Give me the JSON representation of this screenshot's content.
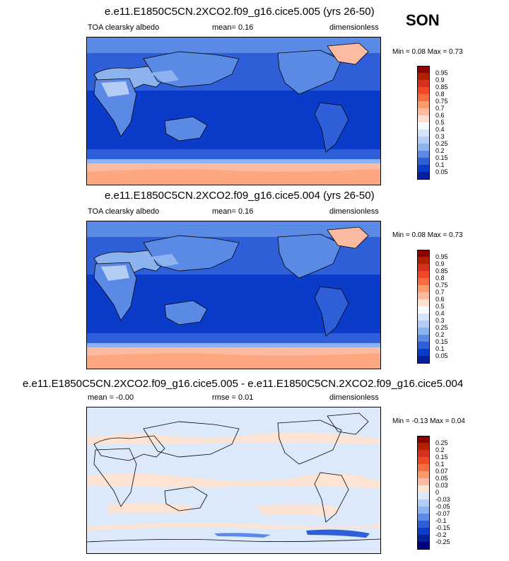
{
  "season": "SON",
  "panels": [
    {
      "title": "e.e11.E1850C5CN.2XCO2.f09_g16.cice5.005 (yrs 26-50)",
      "variable": "TOA clearsky albedo",
      "mean_text": "mean=   0.16",
      "units": "dimensionless",
      "minmax_text": "Min =  0.08 Max =  0.73",
      "colorbar": {
        "labels": [
          "0.95",
          "0.9",
          "0.85",
          "0.8",
          "0.75",
          "0.7",
          "0.6",
          "0.5",
          "0.4",
          "0.3",
          "0.25",
          "0.2",
          "0.15",
          "0.1",
          "0.05"
        ],
        "colors": [
          "#8b0000",
          "#b22000",
          "#d7301f",
          "#ef4a25",
          "#f46d43",
          "#fb9a6a",
          "#fcbba1",
          "#fde0d0",
          "#f7fbff",
          "#d6e4fb",
          "#b3cdf5",
          "#8db3ef",
          "#5a8ae6",
          "#2f5fd8",
          "#0b3bc9",
          "#06209c"
        ]
      }
    },
    {
      "title": "e.e11.E1850C5CN.2XCO2.f09_g16.cice5.004 (yrs 26-50)",
      "variable": "TOA clearsky albedo",
      "mean_text": "mean=   0.16",
      "units": "dimensionless",
      "minmax_text": "Min =  0.08 Max =  0.73",
      "colorbar": {
        "labels": [
          "0.95",
          "0.9",
          "0.85",
          "0.8",
          "0.75",
          "0.7",
          "0.6",
          "0.5",
          "0.4",
          "0.3",
          "0.25",
          "0.2",
          "0.15",
          "0.1",
          "0.05"
        ],
        "colors": [
          "#8b0000",
          "#b22000",
          "#d7301f",
          "#ef4a25",
          "#f46d43",
          "#fb9a6a",
          "#fcbba1",
          "#fde0d0",
          "#f7fbff",
          "#d6e4fb",
          "#b3cdf5",
          "#8db3ef",
          "#5a8ae6",
          "#2f5fd8",
          "#0b3bc9",
          "#06209c"
        ]
      }
    },
    {
      "title": "e.e11.E1850C5CN.2XCO2.f09_g16.cice5.005 - e.e11.E1850C5CN.2XCO2.f09_g16.cice5.004",
      "mean_text": "mean = -0.00",
      "rmse_text": "rmse =  0.01",
      "units": "dimensionless",
      "minmax_text": "Min = -0.13 Max =  0.04",
      "colorbar": {
        "labels": [
          "0.25",
          "0.2",
          "0.15",
          "0.1",
          "0.07",
          "0.05",
          "0.03",
          "0",
          "-0.03",
          "-0.05",
          "-0.07",
          "-0.1",
          "-0.15",
          "-0.2",
          "-0.25"
        ],
        "colors": [
          "#8b0000",
          "#b22000",
          "#d7301f",
          "#ef4a25",
          "#f46d43",
          "#fb9a6a",
          "#fcbba1",
          "#fde3d3",
          "#dce9fb",
          "#b3cdf5",
          "#8db3ef",
          "#5a8ae6",
          "#2f5fd8",
          "#0b3bc9",
          "#06209c",
          "#000080"
        ]
      }
    }
  ],
  "chart_data": [
    {
      "type": "heatmap",
      "title": "e.e11.E1850C5CN.2XCO2.f09_g16.cice5.005 (yrs 26-50)",
      "variable": "TOA clearsky albedo",
      "units": "dimensionless",
      "season": "SON",
      "mean": 0.16,
      "min": 0.08,
      "max": 0.73,
      "contour_levels": [
        0.05,
        0.1,
        0.15,
        0.2,
        0.25,
        0.3,
        0.4,
        0.5,
        0.6,
        0.7,
        0.75,
        0.8,
        0.85,
        0.9,
        0.95
      ]
    },
    {
      "type": "heatmap",
      "title": "e.e11.E1850C5CN.2XCO2.f09_g16.cice5.004 (yrs 26-50)",
      "variable": "TOA clearsky albedo",
      "units": "dimensionless",
      "season": "SON",
      "mean": 0.16,
      "min": 0.08,
      "max": 0.73,
      "contour_levels": [
        0.05,
        0.1,
        0.15,
        0.2,
        0.25,
        0.3,
        0.4,
        0.5,
        0.6,
        0.7,
        0.75,
        0.8,
        0.85,
        0.9,
        0.95
      ]
    },
    {
      "type": "heatmap",
      "title": "e.e11.E1850C5CN.2XCO2.f09_g16.cice5.005 - e.e11.E1850C5CN.2XCO2.f09_g16.cice5.004",
      "units": "dimensionless",
      "season": "SON",
      "mean": -0.0,
      "rmse": 0.01,
      "min": -0.13,
      "max": 0.04,
      "contour_levels": [
        -0.25,
        -0.2,
        -0.15,
        -0.1,
        -0.07,
        -0.05,
        -0.03,
        0,
        0.03,
        0.05,
        0.07,
        0.1,
        0.15,
        0.2,
        0.25
      ]
    }
  ]
}
